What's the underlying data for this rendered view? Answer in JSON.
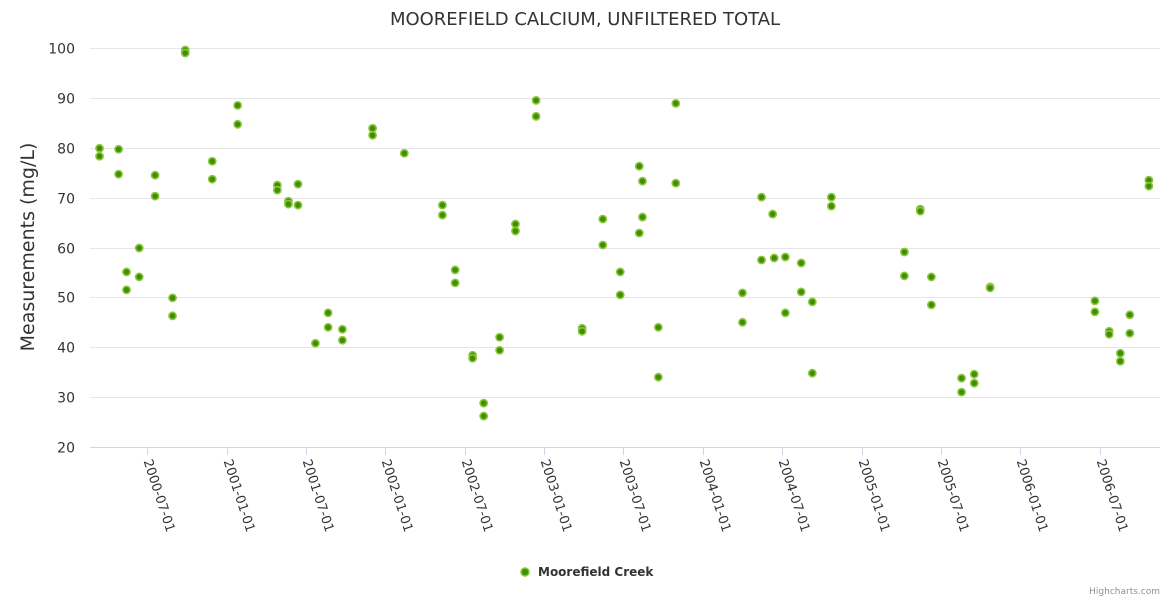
{
  "chart_data": {
    "type": "scatter",
    "title": "MOOREFIELD CALCIUM, UNFILTERED TOTAL",
    "xlabel": "",
    "ylabel": "Measurements (mg/L)",
    "ylim": [
      20,
      100
    ],
    "yticks": [
      20,
      30,
      40,
      50,
      60,
      70,
      80,
      90,
      100
    ],
    "xlim": [
      2000.14,
      2006.88
    ],
    "x_units": "decimal year",
    "xtick_labels": [
      "2000-07-01",
      "2001-01-01",
      "2001-07-01",
      "2002-01-01",
      "2002-07-01",
      "2003-01-01",
      "2003-07-01",
      "2004-01-01",
      "2004-07-01",
      "2005-01-01",
      "2005-07-01",
      "2006-01-01",
      "2006-07-01"
    ],
    "grid": true,
    "legend_position": "bottom-center",
    "series": [
      {
        "name": "Moorefield Creek",
        "color": "#3f8f00",
        "outline": "#8cc63f",
        "points": [
          [
            2000.2,
            79.9
          ],
          [
            2000.2,
            78.3
          ],
          [
            2000.32,
            79.7
          ],
          [
            2000.32,
            74.7
          ],
          [
            2000.37,
            55.1
          ],
          [
            2000.37,
            51.5
          ],
          [
            2000.45,
            59.9
          ],
          [
            2000.45,
            54.1
          ],
          [
            2000.55,
            74.5
          ],
          [
            2000.55,
            70.3
          ],
          [
            2000.66,
            49.9
          ],
          [
            2000.66,
            46.3
          ],
          [
            2000.74,
            99.6
          ],
          [
            2000.74,
            99.0
          ],
          [
            2000.91,
            77.3
          ],
          [
            2000.91,
            73.7
          ],
          [
            2001.07,
            88.5
          ],
          [
            2001.07,
            84.7
          ],
          [
            2001.32,
            72.5
          ],
          [
            2001.32,
            71.5
          ],
          [
            2001.39,
            69.3
          ],
          [
            2001.39,
            68.7
          ],
          [
            2001.45,
            72.7
          ],
          [
            2001.45,
            68.5
          ],
          [
            2001.56,
            40.8
          ],
          [
            2001.64,
            46.9
          ],
          [
            2001.64,
            44.0
          ],
          [
            2001.73,
            43.6
          ],
          [
            2001.73,
            41.4
          ],
          [
            2001.92,
            83.9
          ],
          [
            2001.92,
            82.5
          ],
          [
            2002.12,
            78.9
          ],
          [
            2002.36,
            68.5
          ],
          [
            2002.36,
            66.5
          ],
          [
            2002.44,
            55.5
          ],
          [
            2002.44,
            52.9
          ],
          [
            2002.55,
            38.4
          ],
          [
            2002.55,
            37.8
          ],
          [
            2002.62,
            28.8
          ],
          [
            2002.62,
            26.2
          ],
          [
            2002.72,
            42.0
          ],
          [
            2002.72,
            39.4
          ],
          [
            2002.82,
            64.7
          ],
          [
            2002.82,
            63.3
          ],
          [
            2002.95,
            89.5
          ],
          [
            2002.95,
            86.3
          ],
          [
            2003.24,
            43.8
          ],
          [
            2003.24,
            43.2
          ],
          [
            2003.37,
            65.7
          ],
          [
            2003.37,
            60.5
          ],
          [
            2003.48,
            55.1
          ],
          [
            2003.48,
            50.5
          ],
          [
            2003.6,
            76.3
          ],
          [
            2003.62,
            73.3
          ],
          [
            2003.62,
            66.1
          ],
          [
            2003.6,
            62.9
          ],
          [
            2003.72,
            44.0
          ],
          [
            2003.72,
            34.0
          ],
          [
            2003.83,
            88.9
          ],
          [
            2003.83,
            72.9
          ],
          [
            2004.25,
            50.9
          ],
          [
            2004.25,
            45.0
          ],
          [
            2004.37,
            70.1
          ],
          [
            2004.37,
            57.5
          ],
          [
            2004.44,
            66.7
          ],
          [
            2004.45,
            57.9
          ],
          [
            2004.52,
            58.1
          ],
          [
            2004.52,
            46.9
          ],
          [
            2004.62,
            56.9
          ],
          [
            2004.62,
            51.1
          ],
          [
            2004.69,
            49.1
          ],
          [
            2004.69,
            34.8
          ],
          [
            2004.81,
            70.1
          ],
          [
            2004.81,
            68.3
          ],
          [
            2005.27,
            59.1
          ],
          [
            2005.27,
            54.3
          ],
          [
            2005.37,
            67.7
          ],
          [
            2005.37,
            67.3
          ],
          [
            2005.44,
            54.1
          ],
          [
            2005.44,
            48.5
          ],
          [
            2005.63,
            33.8
          ],
          [
            2005.63,
            31.0
          ],
          [
            2005.71,
            34.6
          ],
          [
            2005.71,
            32.8
          ],
          [
            2005.81,
            52.1
          ],
          [
            2005.81,
            51.9
          ],
          [
            2006.47,
            49.3
          ],
          [
            2006.47,
            47.1
          ],
          [
            2006.56,
            43.2
          ],
          [
            2006.56,
            42.6
          ],
          [
            2006.63,
            38.8
          ],
          [
            2006.63,
            37.2
          ],
          [
            2006.69,
            46.5
          ],
          [
            2006.69,
            42.8
          ],
          [
            2006.81,
            73.5
          ],
          [
            2006.81,
            72.3
          ]
        ]
      }
    ]
  },
  "credits": "Highcharts.com"
}
